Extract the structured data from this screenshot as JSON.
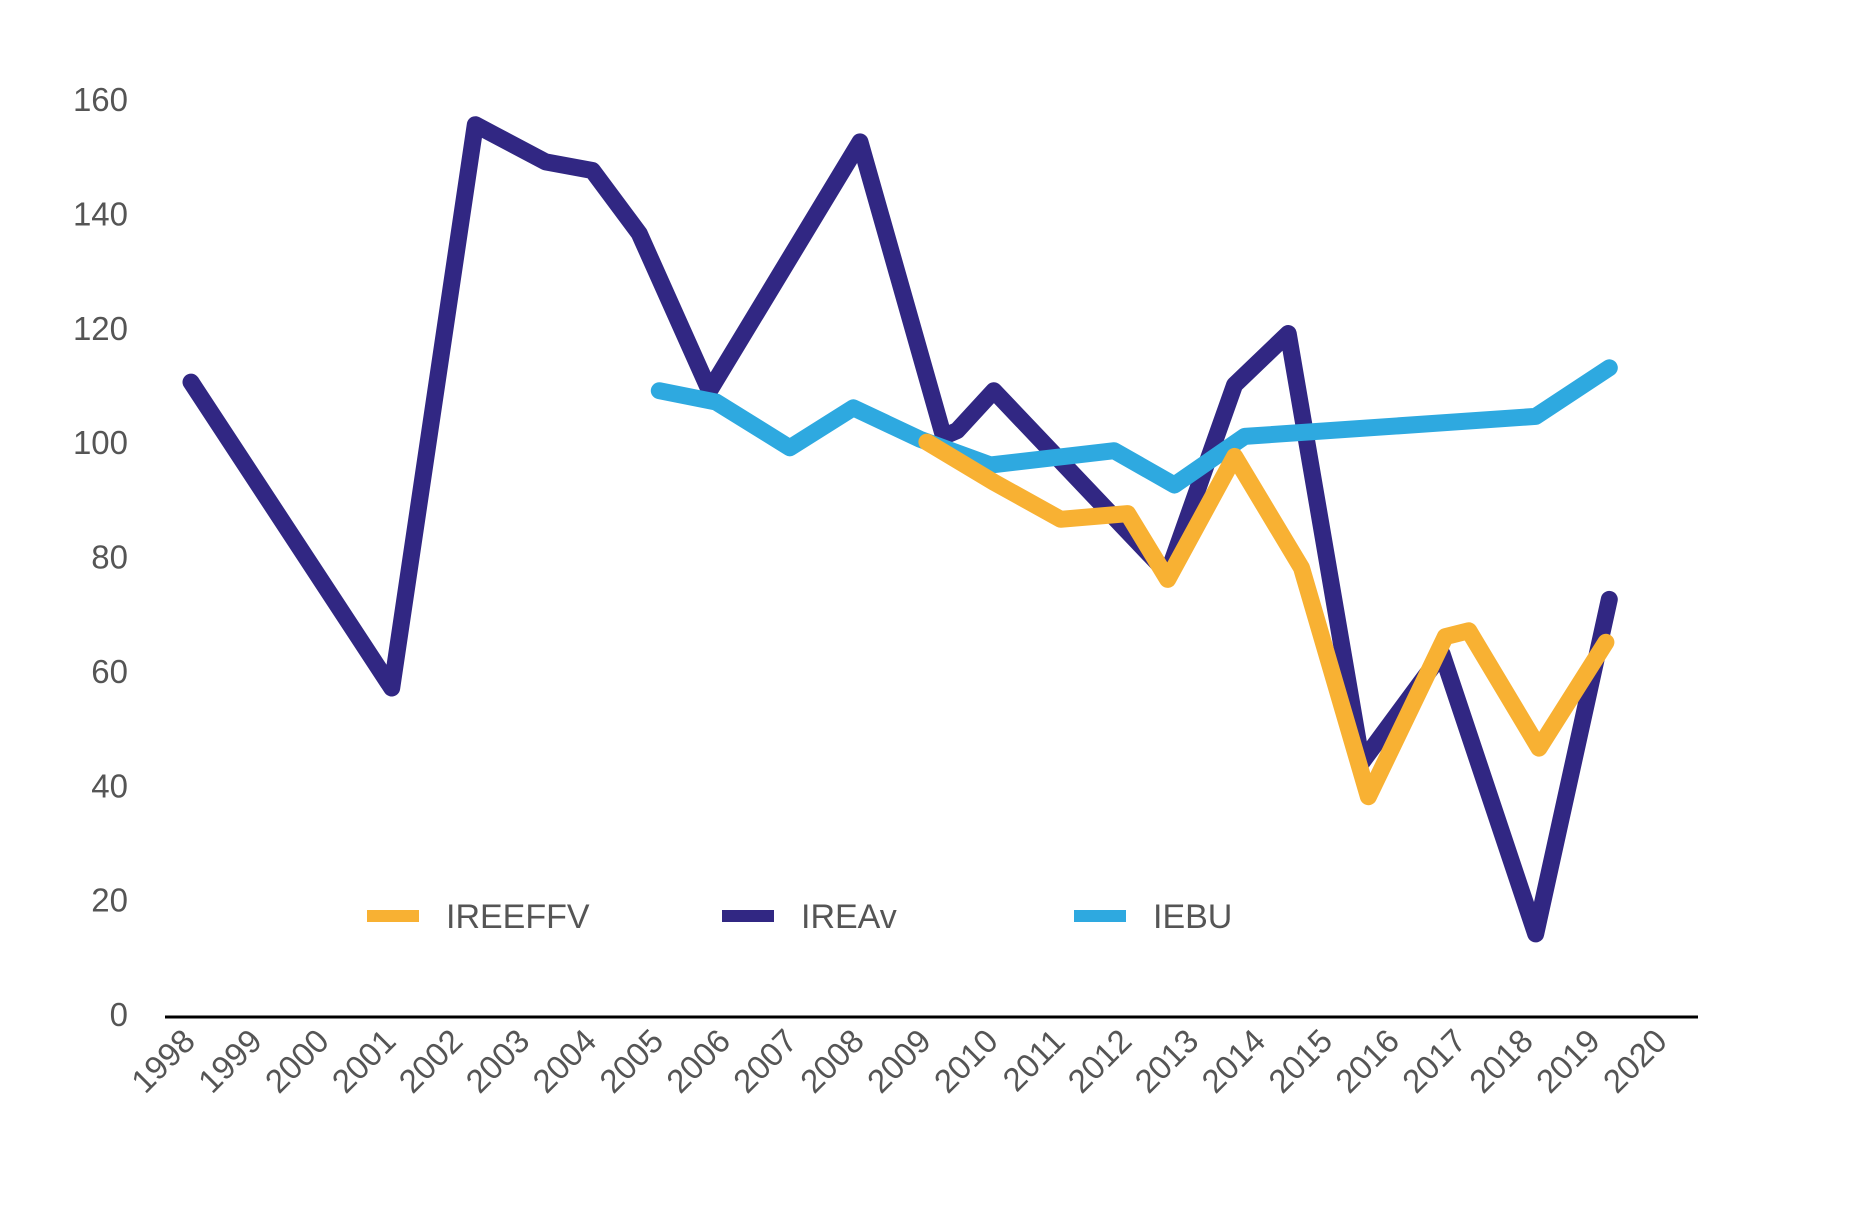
{
  "chart_data": {
    "type": "line",
    "title": "",
    "xlabel": "",
    "ylabel": "",
    "ylim": [
      0,
      160
    ],
    "yticks": [
      0,
      20,
      40,
      60,
      80,
      100,
      120,
      140,
      160
    ],
    "categories": [
      "1998",
      "1999",
      "2000",
      "2001",
      "2002",
      "2003",
      "2004",
      "2005",
      "2006",
      "2007",
      "2008",
      "2009",
      "2010",
      "2011",
      "2012",
      "2013",
      "2014",
      "2015",
      "2016",
      "2017",
      "2018",
      "2019",
      "2020"
    ],
    "legend_position": "bottom-inside",
    "grid": false,
    "series": [
      {
        "name": "IREEFFV",
        "color": "#F8B133",
        "points": [
          {
            "x": 2009,
            "y": 100
          },
          {
            "x": 2010,
            "y": 93
          },
          {
            "x": 2011,
            "y": 86.5
          },
          {
            "x": 2012,
            "y": 87.5
          },
          {
            "x": 2012.6,
            "y": 76
          },
          {
            "x": 2013.6,
            "y": 97.5
          },
          {
            "x": 2014.6,
            "y": 78
          },
          {
            "x": 2015.6,
            "y": 38
          },
          {
            "x": 2016.75,
            "y": 66
          },
          {
            "x": 2017.1,
            "y": 67
          },
          {
            "x": 2018.15,
            "y": 46.5
          },
          {
            "x": 2019.15,
            "y": 65
          }
        ]
      },
      {
        "name": "IREAv",
        "color": "#312783",
        "points": [
          {
            "x": 1998,
            "y": 110.5
          },
          {
            "x": 2001,
            "y": 57
          },
          {
            "x": 2002.25,
            "y": 155.5
          },
          {
            "x": 2003.3,
            "y": 149
          },
          {
            "x": 2004.0,
            "y": 147.5
          },
          {
            "x": 2004.7,
            "y": 136.5
          },
          {
            "x": 2005.75,
            "y": 109
          },
          {
            "x": 2008.0,
            "y": 152.5
          },
          {
            "x": 2009.25,
            "y": 101
          },
          {
            "x": 2009.45,
            "y": 102
          },
          {
            "x": 2010.0,
            "y": 109
          },
          {
            "x": 2012.6,
            "y": 77
          },
          {
            "x": 2013.6,
            "y": 110
          },
          {
            "x": 2014.4,
            "y": 119
          },
          {
            "x": 2015.5,
            "y": 44
          },
          {
            "x": 2016.7,
            "y": 63
          },
          {
            "x": 2018.1,
            "y": 14
          },
          {
            "x": 2019.2,
            "y": 72.5
          }
        ]
      },
      {
        "name": "IEBU",
        "color": "#2EA9E0",
        "points": [
          {
            "x": 2005,
            "y": 109
          },
          {
            "x": 2005.85,
            "y": 107
          },
          {
            "x": 2006.95,
            "y": 99
          },
          {
            "x": 2007.9,
            "y": 106
          },
          {
            "x": 2008.9,
            "y": 100.5
          },
          {
            "x": 2009.95,
            "y": 96
          },
          {
            "x": 2011.8,
            "y": 98.5
          },
          {
            "x": 2012.7,
            "y": 92.5
          },
          {
            "x": 2013.75,
            "y": 101
          },
          {
            "x": 2018.1,
            "y": 104.5
          },
          {
            "x": 2019.2,
            "y": 113
          }
        ]
      }
    ]
  }
}
